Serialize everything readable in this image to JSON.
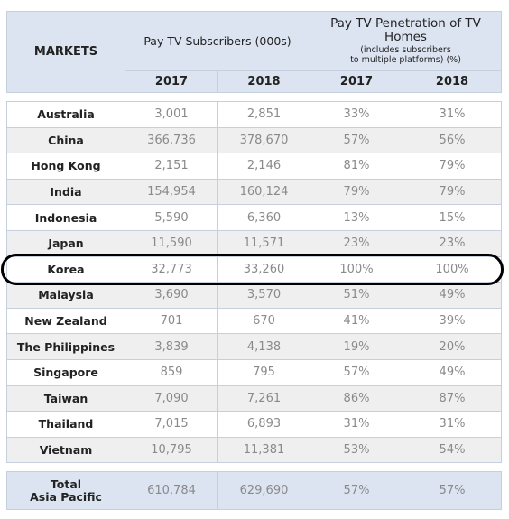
{
  "header": {
    "markets": "MARKETS",
    "subscribers": "Pay TV Subscribers (000s)",
    "penetration_title": "Pay TV Penetration of TV Homes",
    "penetration_note_line1": "(includes subscribers",
    "penetration_note_line2": "to multiple platforms) (%)",
    "years": [
      "2017",
      "2018",
      "2017",
      "2018"
    ]
  },
  "rows": [
    {
      "market": "Australia",
      "subs_2017": "3,001",
      "subs_2018": "2,851",
      "pen_2017": "33%",
      "pen_2018": "31%"
    },
    {
      "market": "China",
      "subs_2017": "366,736",
      "subs_2018": "378,670",
      "pen_2017": "57%",
      "pen_2018": "56%"
    },
    {
      "market": "Hong Kong",
      "subs_2017": "2,151",
      "subs_2018": "2,146",
      "pen_2017": "81%",
      "pen_2018": "79%"
    },
    {
      "market": "India",
      "subs_2017": "154,954",
      "subs_2018": "160,124",
      "pen_2017": "79%",
      "pen_2018": "79%"
    },
    {
      "market": "Indonesia",
      "subs_2017": "5,590",
      "subs_2018": "6,360",
      "pen_2017": "13%",
      "pen_2018": "15%"
    },
    {
      "market": "Japan",
      "subs_2017": "11,590",
      "subs_2018": "11,571",
      "pen_2017": "23%",
      "pen_2018": "23%"
    },
    {
      "market": "Korea",
      "subs_2017": "32,773",
      "subs_2018": "33,260",
      "pen_2017": "100%",
      "pen_2018": "100%"
    },
    {
      "market": "Malaysia",
      "subs_2017": "3,690",
      "subs_2018": "3,570",
      "pen_2017": "51%",
      "pen_2018": "49%"
    },
    {
      "market": "New Zealand",
      "subs_2017": "701",
      "subs_2018": "670",
      "pen_2017": "41%",
      "pen_2018": "39%"
    },
    {
      "market": "The Philippines",
      "subs_2017": "3,839",
      "subs_2018": "4,138",
      "pen_2017": "19%",
      "pen_2018": "20%"
    },
    {
      "market": "Singapore",
      "subs_2017": "859",
      "subs_2018": "795",
      "pen_2017": "57%",
      "pen_2018": "49%"
    },
    {
      "market": "Taiwan",
      "subs_2017": "7,090",
      "subs_2018": "7,261",
      "pen_2017": "86%",
      "pen_2018": "87%"
    },
    {
      "market": "Thailand",
      "subs_2017": "7,015",
      "subs_2018": "6,893",
      "pen_2017": "31%",
      "pen_2018": "31%"
    },
    {
      "market": "Vietnam",
      "subs_2017": "10,795",
      "subs_2018": "11,381",
      "pen_2017": "53%",
      "pen_2018": "54%"
    }
  ],
  "total": {
    "label_line1": "Total",
    "label_line2": "Asia Pacific",
    "subs_2017": "610,784",
    "subs_2018": "629,690",
    "pen_2017": "57%",
    "pen_2018": "57%"
  },
  "highlight": {
    "market": "Korea"
  }
}
